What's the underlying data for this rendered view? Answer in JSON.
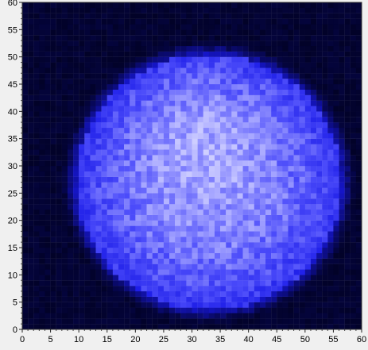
{
  "chart_data": {
    "type": "heatmap",
    "title": "",
    "xlabel": "",
    "ylabel": "",
    "xlim": [
      0,
      60
    ],
    "ylim": [
      0,
      60
    ],
    "grid": false,
    "legend": "none",
    "colormap": {
      "low": "#000000",
      "high": "#ffffff",
      "mid": "#0000ff"
    },
    "x_ticks": [
      "0",
      "5",
      "10",
      "15",
      "20",
      "25",
      "30",
      "35",
      "40",
      "45",
      "50",
      "55",
      "60"
    ],
    "y_ticks": [
      "0",
      "5",
      "10",
      "15",
      "20",
      "25",
      "30",
      "35",
      "40",
      "45",
      "50",
      "55",
      "60"
    ],
    "grid_size": 60,
    "background_level": 0.12,
    "blob": {
      "center_x": 33,
      "center_y": 27,
      "radius": 23.5,
      "peak_level": 0.82,
      "edge_level": 0.55,
      "noise": 0.18
    }
  }
}
